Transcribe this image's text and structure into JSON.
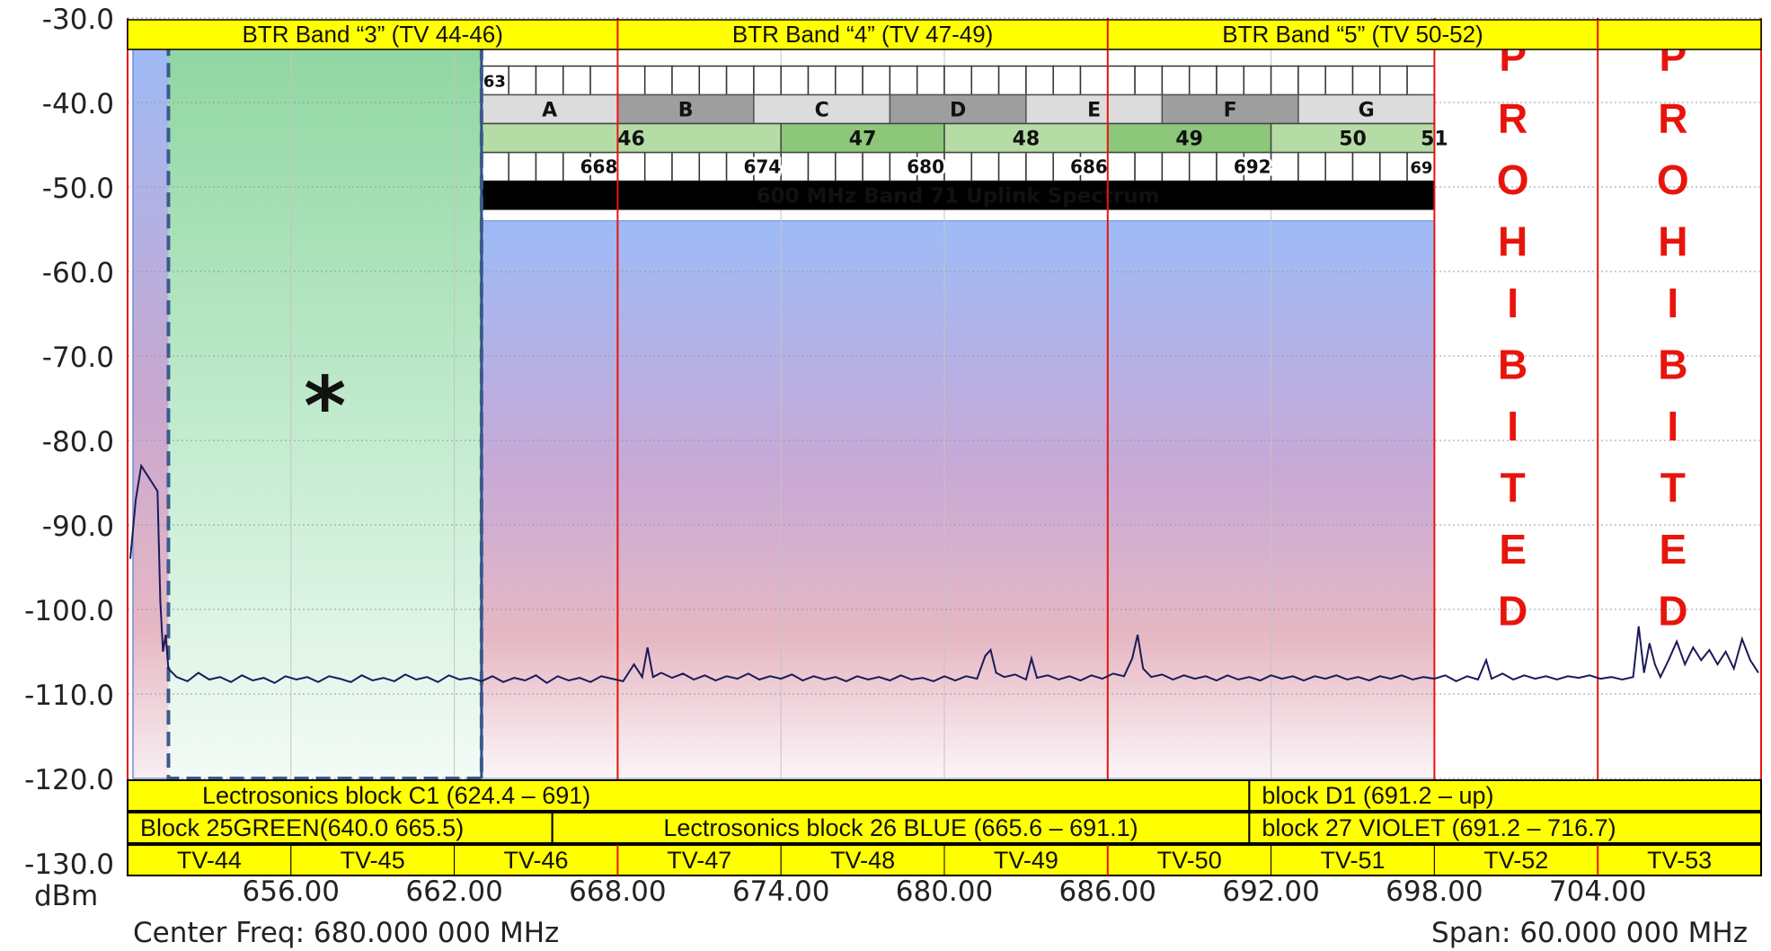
{
  "chart_data": {
    "type": "line",
    "y_unit": "dBm",
    "ylim": [
      -130,
      -30
    ],
    "xlim": [
      650,
      710
    ],
    "y_ticks": [
      "-30.0",
      "-40.0",
      "-50.0",
      "-60.0",
      "-70.0",
      "-80.0",
      "-90.0",
      "-100.0",
      "-110.0",
      "-120.0",
      "-130.0"
    ],
    "x_ticks": [
      {
        "value": 656,
        "label": "656.00"
      },
      {
        "value": 662,
        "label": "662.00"
      },
      {
        "value": 668,
        "label": "668.00"
      },
      {
        "value": 674,
        "label": "674.00"
      },
      {
        "value": 680,
        "label": "680.00"
      },
      {
        "value": 686,
        "label": "686.00"
      },
      {
        "value": 692,
        "label": "692.00"
      },
      {
        "value": 698,
        "label": "698.00"
      },
      {
        "value": 704,
        "label": "704.00"
      }
    ],
    "center_freq": "Center Freq: 680.000 000 MHz",
    "span": "Span: 60.000 000 MHz",
    "grid": true,
    "colors": {
      "trace": "#1a1a5a",
      "marker_red": "#e8140c",
      "yellow": "#ffff00",
      "green_zone": "#8ed6a0",
      "band_blue": "#9dbbf7",
      "band_pink": "#e0b3c3"
    },
    "btr_bands": [
      {
        "label": "BTR Band “3” (TV 44-46)",
        "from": 650,
        "to": 668
      },
      {
        "label": "BTR Band “4” (TV 47-49)",
        "from": 668,
        "to": 686
      },
      {
        "label": "BTR Band “5” (TV 50-52)",
        "from": 686,
        "to": 704
      }
    ],
    "block_rows": [
      [
        {
          "label": "Lectrosonics block C1 (624.4 – 691)",
          "from": 650,
          "to": 691.2
        },
        {
          "label": "block D1 (691.2 – up)",
          "from": 691.2,
          "to": 710
        }
      ],
      [
        {
          "label": "Block 25GREEN(640.0 665.5)",
          "from": 650,
          "to": 665.6
        },
        {
          "label": "Lectrosonics block 26 BLUE (665.6 – 691.1)",
          "from": 665.6,
          "to": 691.2
        },
        {
          "label": "block 27 VIOLET (691.2 – 716.7)",
          "from": 691.2,
          "to": 710
        }
      ]
    ],
    "tv_channels": [
      {
        "label": "TV-44",
        "from": 650,
        "to": 656
      },
      {
        "label": "TV-45",
        "from": 656,
        "to": 662
      },
      {
        "label": "TV-46",
        "from": 662,
        "to": 668
      },
      {
        "label": "TV-47",
        "from": 668,
        "to": 674
      },
      {
        "label": "TV-48",
        "from": 674,
        "to": 680
      },
      {
        "label": "TV-49",
        "from": 680,
        "to": 686
      },
      {
        "label": "TV-50",
        "from": 686,
        "to": 692
      },
      {
        "label": "TV-51",
        "from": 692,
        "to": 698
      },
      {
        "label": "TV-52",
        "from": 698,
        "to": 704
      },
      {
        "label": "TV-53",
        "from": 704,
        "to": 710
      }
    ],
    "band71": {
      "title": "600 MHz Band 71 Uplink Spectrum",
      "from": 663,
      "to": 698,
      "edge_labels": [
        {
          "text": "63",
          "at": 663
        },
        {
          "text": "69",
          "at": 698
        }
      ],
      "blocks": [
        "A",
        "B",
        "C",
        "D",
        "E",
        "F",
        "G"
      ],
      "channels": [
        "46",
        "47",
        "48",
        "49",
        "50",
        "51"
      ],
      "freq_labels": [
        "668",
        "674",
        "680",
        "686",
        "692"
      ]
    },
    "prohibited": {
      "text": "PROHIBITED",
      "columns": [
        698,
        704
      ]
    },
    "asterisk": "*",
    "trace_points": [
      [
        650.1,
        -94
      ],
      [
        650.3,
        -87
      ],
      [
        650.5,
        -83
      ],
      [
        650.7,
        -84
      ],
      [
        650.9,
        -85
      ],
      [
        651.1,
        -86
      ],
      [
        651.2,
        -99
      ],
      [
        651.3,
        -105
      ],
      [
        651.4,
        -103
      ],
      [
        651.5,
        -107
      ],
      [
        651.8,
        -108
      ],
      [
        652.2,
        -108.5
      ],
      [
        652.6,
        -107.5
      ],
      [
        653,
        -108.3
      ],
      [
        653.4,
        -108
      ],
      [
        653.8,
        -108.6
      ],
      [
        654.2,
        -107.8
      ],
      [
        654.6,
        -108.4
      ],
      [
        655,
        -108.1
      ],
      [
        655.4,
        -108.7
      ],
      [
        655.8,
        -107.9
      ],
      [
        656.2,
        -108.3
      ],
      [
        656.6,
        -108
      ],
      [
        657,
        -108.6
      ],
      [
        657.4,
        -107.9
      ],
      [
        657.8,
        -108.2
      ],
      [
        658.2,
        -108.6
      ],
      [
        658.6,
        -107.8
      ],
      [
        659,
        -108.4
      ],
      [
        659.4,
        -108.1
      ],
      [
        659.8,
        -108.5
      ],
      [
        660.2,
        -107.7
      ],
      [
        660.6,
        -108.3
      ],
      [
        661,
        -108
      ],
      [
        661.4,
        -108.6
      ],
      [
        661.8,
        -107.8
      ],
      [
        662.2,
        -108.3
      ],
      [
        662.6,
        -108.1
      ],
      [
        663,
        -108.5
      ],
      [
        663.4,
        -107.9
      ],
      [
        663.8,
        -108.6
      ],
      [
        664.2,
        -108.1
      ],
      [
        664.6,
        -108.4
      ],
      [
        665,
        -107.8
      ],
      [
        665.4,
        -108.7
      ],
      [
        665.8,
        -107.9
      ],
      [
        666.2,
        -108.4
      ],
      [
        666.6,
        -108.1
      ],
      [
        667,
        -108.6
      ],
      [
        667.4,
        -107.9
      ],
      [
        667.8,
        -108.2
      ],
      [
        668.2,
        -108.5
      ],
      [
        668.6,
        -106.5
      ],
      [
        668.9,
        -108
      ],
      [
        669.1,
        -104.5
      ],
      [
        669.3,
        -108
      ],
      [
        669.6,
        -107.5
      ],
      [
        670,
        -108.1
      ],
      [
        670.4,
        -107.6
      ],
      [
        670.8,
        -108.3
      ],
      [
        671.2,
        -107.8
      ],
      [
        671.6,
        -108.4
      ],
      [
        672,
        -107.9
      ],
      [
        672.4,
        -108.2
      ],
      [
        672.8,
        -107.6
      ],
      [
        673.2,
        -108.3
      ],
      [
        673.6,
        -107.9
      ],
      [
        674,
        -108.2
      ],
      [
        674.4,
        -107.7
      ],
      [
        674.8,
        -108.4
      ],
      [
        675.2,
        -107.9
      ],
      [
        675.6,
        -108.3
      ],
      [
        676,
        -108
      ],
      [
        676.4,
        -108.5
      ],
      [
        676.8,
        -107.9
      ],
      [
        677.2,
        -108.3
      ],
      [
        677.6,
        -108
      ],
      [
        678,
        -108.4
      ],
      [
        678.4,
        -107.8
      ],
      [
        678.8,
        -108.3
      ],
      [
        679.2,
        -108.1
      ],
      [
        679.6,
        -108.5
      ],
      [
        680,
        -107.9
      ],
      [
        680.4,
        -108.4
      ],
      [
        680.8,
        -107.9
      ],
      [
        681.2,
        -108.2
      ],
      [
        681.5,
        -105.5
      ],
      [
        681.7,
        -104.8
      ],
      [
        681.9,
        -107.5
      ],
      [
        682.2,
        -108
      ],
      [
        682.6,
        -107.7
      ],
      [
        683,
        -108.3
      ],
      [
        683.2,
        -105.8
      ],
      [
        683.4,
        -108.1
      ],
      [
        683.8,
        -107.8
      ],
      [
        684.2,
        -108.3
      ],
      [
        684.6,
        -107.9
      ],
      [
        685,
        -108.4
      ],
      [
        685.4,
        -107.8
      ],
      [
        685.8,
        -108.2
      ],
      [
        686.2,
        -107.6
      ],
      [
        686.6,
        -107.9
      ],
      [
        686.9,
        -105.8
      ],
      [
        687.1,
        -103
      ],
      [
        687.3,
        -107
      ],
      [
        687.6,
        -108
      ],
      [
        688,
        -107.7
      ],
      [
        688.4,
        -108.3
      ],
      [
        688.8,
        -107.8
      ],
      [
        689.2,
        -108.2
      ],
      [
        689.6,
        -107.9
      ],
      [
        690,
        -108.4
      ],
      [
        690.4,
        -107.8
      ],
      [
        690.8,
        -108.3
      ],
      [
        691.2,
        -108
      ],
      [
        691.6,
        -108.4
      ],
      [
        692,
        -107.8
      ],
      [
        692.4,
        -108.2
      ],
      [
        692.8,
        -107.9
      ],
      [
        693.2,
        -108.4
      ],
      [
        693.6,
        -107.9
      ],
      [
        694,
        -108.2
      ],
      [
        694.4,
        -107.8
      ],
      [
        694.8,
        -108.3
      ],
      [
        695.2,
        -108
      ],
      [
        695.6,
        -108.4
      ],
      [
        696,
        -107.9
      ],
      [
        696.4,
        -108.2
      ],
      [
        696.8,
        -107.8
      ],
      [
        697.2,
        -108.3
      ],
      [
        697.6,
        -108
      ],
      [
        698,
        -108.2
      ],
      [
        698.4,
        -107.8
      ],
      [
        698.8,
        -108.5
      ],
      [
        699.2,
        -107.9
      ],
      [
        699.6,
        -108.3
      ],
      [
        699.9,
        -106
      ],
      [
        700.1,
        -108.2
      ],
      [
        700.5,
        -107.6
      ],
      [
        700.9,
        -108.3
      ],
      [
        701.3,
        -107.8
      ],
      [
        701.7,
        -108.2
      ],
      [
        702.1,
        -107.9
      ],
      [
        702.5,
        -108.3
      ],
      [
        702.9,
        -107.9
      ],
      [
        703.3,
        -108.1
      ],
      [
        703.7,
        -107.8
      ],
      [
        704.1,
        -108.2
      ],
      [
        704.5,
        -108
      ],
      [
        704.9,
        -108.3
      ],
      [
        705.3,
        -108
      ],
      [
        705.5,
        -102
      ],
      [
        705.7,
        -107.5
      ],
      [
        705.9,
        -104
      ],
      [
        706.1,
        -106.5
      ],
      [
        706.3,
        -108
      ],
      [
        706.6,
        -106
      ],
      [
        706.9,
        -103.8
      ],
      [
        707.2,
        -106.5
      ],
      [
        707.5,
        -104.5
      ],
      [
        707.8,
        -106
      ],
      [
        708.1,
        -104.8
      ],
      [
        708.4,
        -106.5
      ],
      [
        708.7,
        -105
      ],
      [
        709,
        -107
      ],
      [
        709.3,
        -103.5
      ],
      [
        709.6,
        -106
      ],
      [
        709.9,
        -107.5
      ]
    ]
  }
}
